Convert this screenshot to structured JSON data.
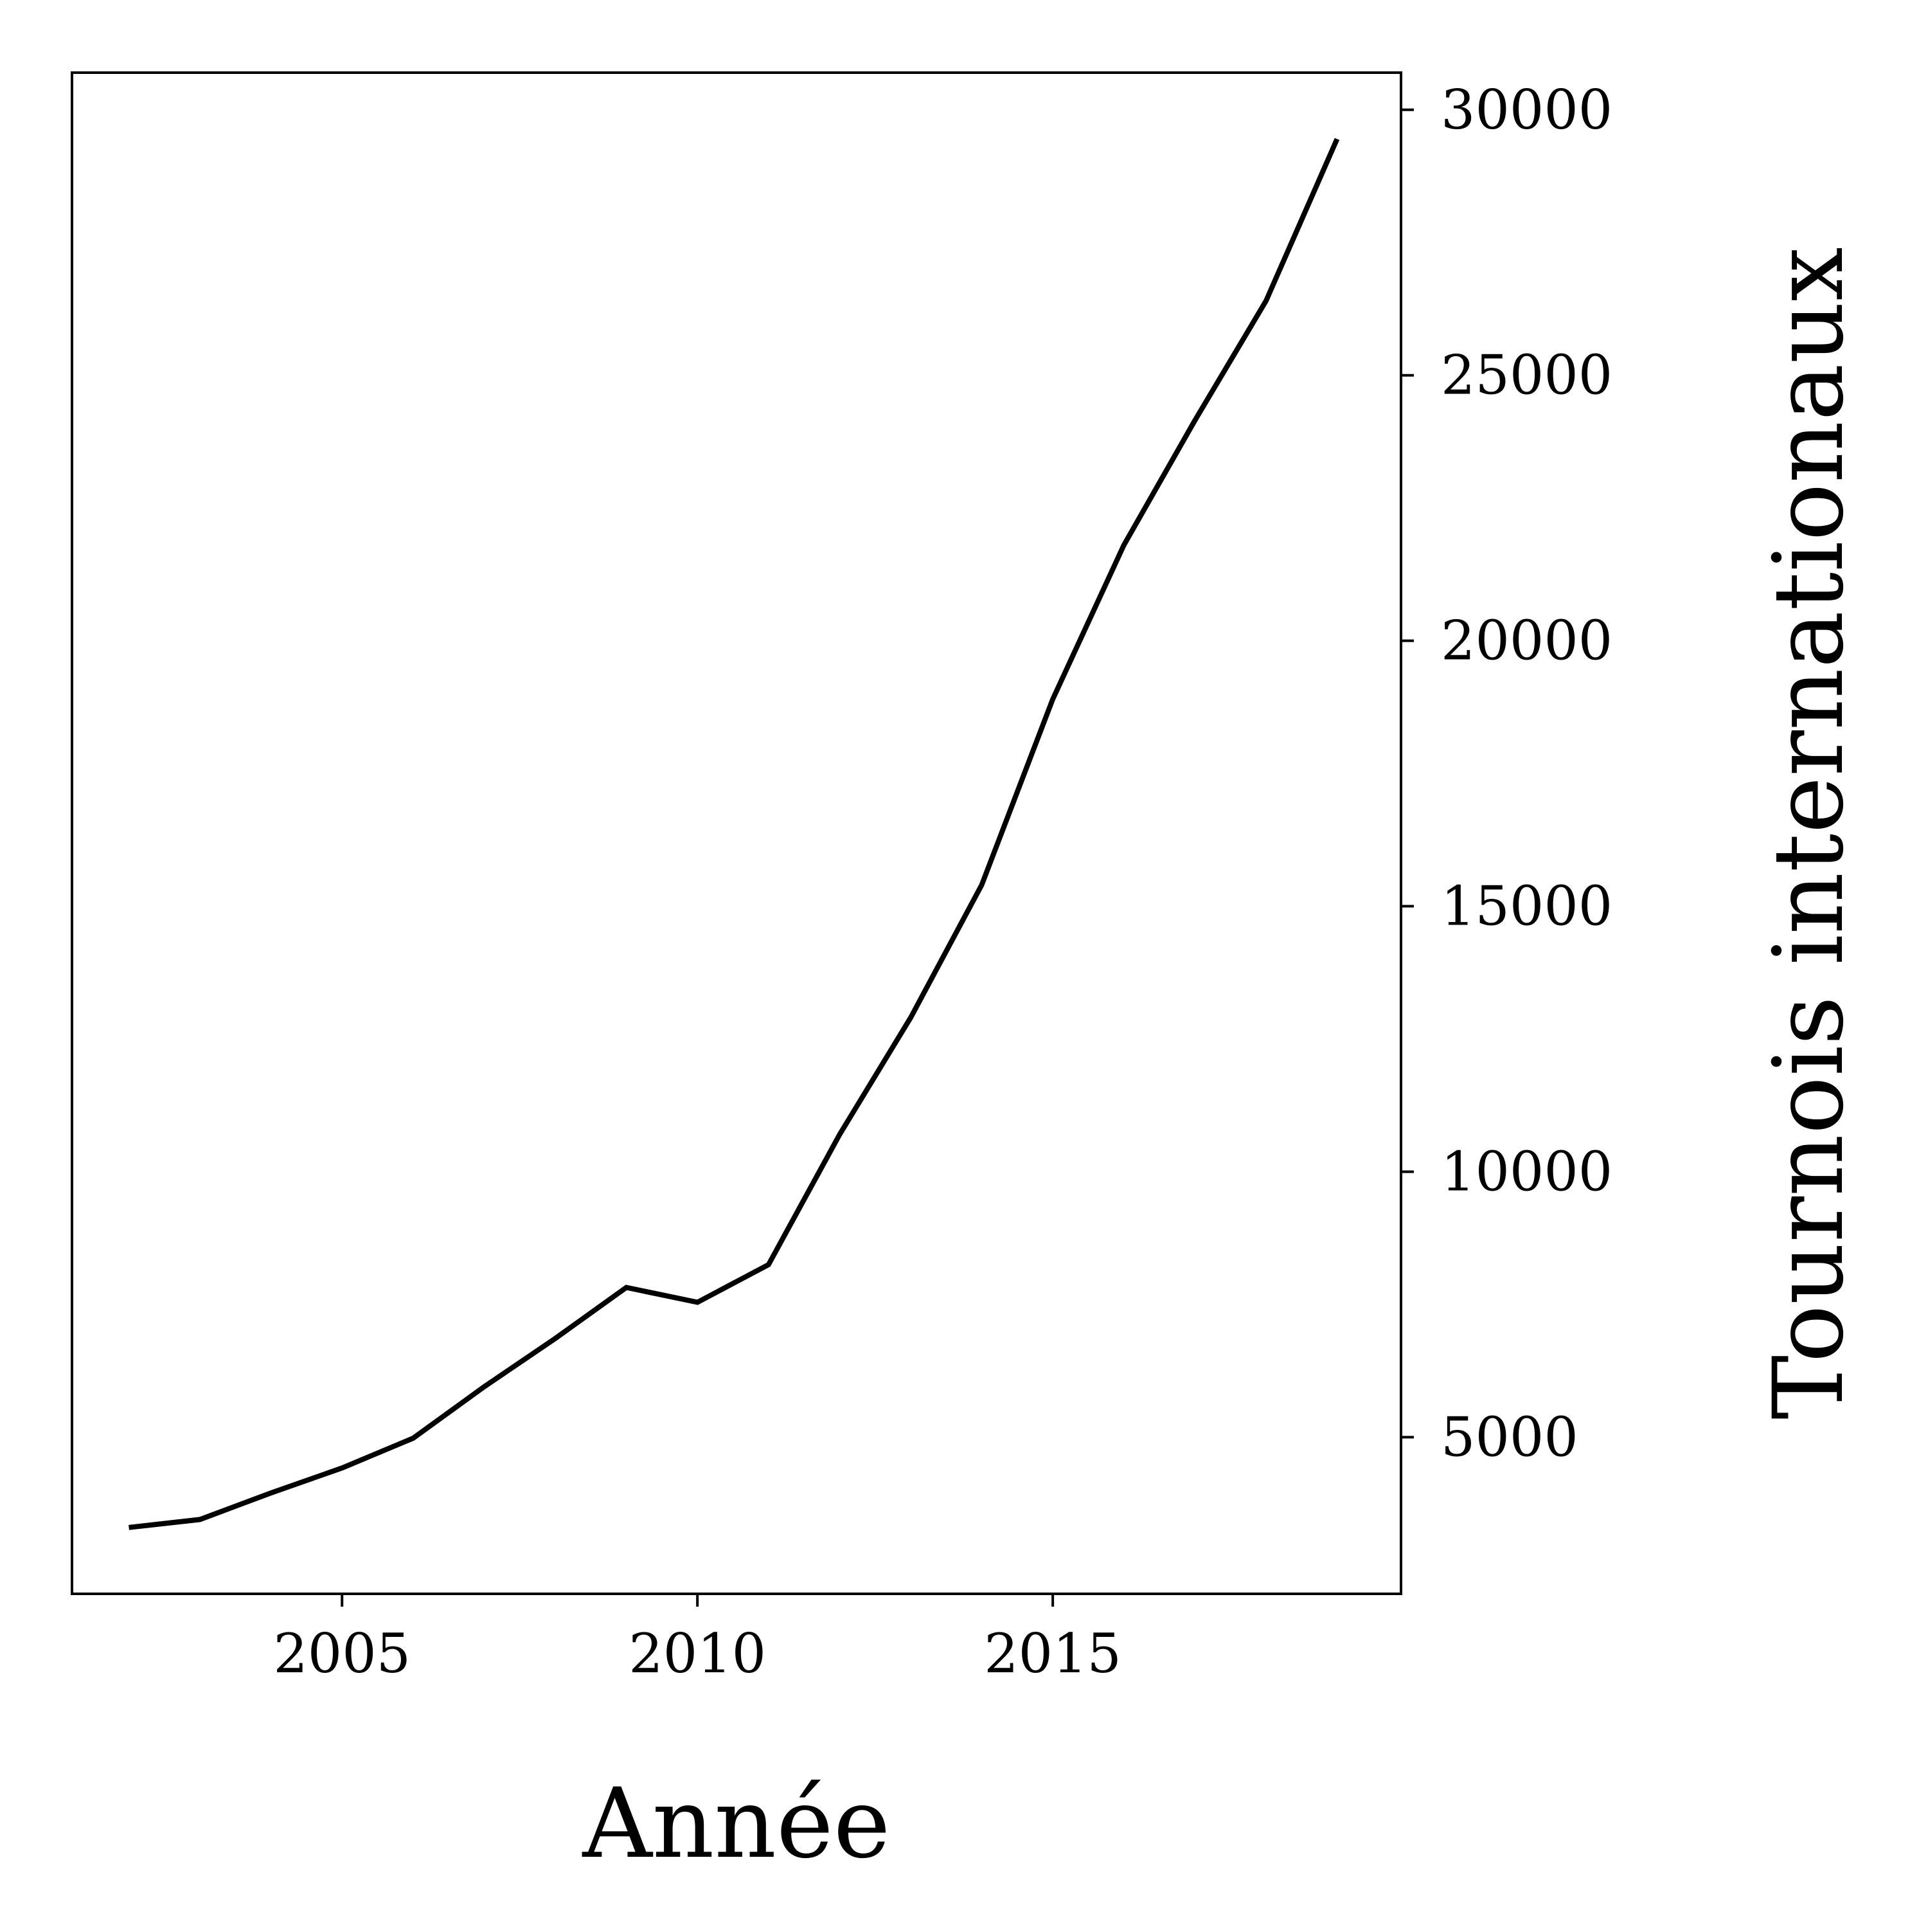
{
  "chart_data": {
    "type": "line",
    "title": "",
    "xlabel": "Année",
    "ylabel": "Tournois internationaux",
    "y_axis_side": "right",
    "grid": false,
    "legend": "none",
    "line_color": "#000000",
    "xlim": [
      2001.2,
      2019.9
    ],
    "ylim": [
      2050,
      30700
    ],
    "x_ticks": [
      2005,
      2010,
      2015
    ],
    "x_tick_labels": [
      "2005",
      "2010",
      "2015"
    ],
    "y_ticks": [
      5000,
      10000,
      15000,
      20000,
      25000,
      30000
    ],
    "y_tick_labels": [
      "5000",
      "10000",
      "15000",
      "20000",
      "25000",
      "30000"
    ],
    "series": [
      {
        "x": [
          2002,
          2003,
          2004,
          2005,
          2006,
          2007,
          2008,
          2009,
          2010,
          2011,
          2012,
          2013,
          2014,
          2015,
          2016,
          2017,
          2018,
          2019
        ],
        "y": [
          3300,
          3450,
          3950,
          4420,
          4980,
          5950,
          6860,
          7820,
          7540,
          8250,
          10700,
          12900,
          15400,
          18900,
          21800,
          24150,
          26400,
          29450
        ]
      }
    ]
  }
}
